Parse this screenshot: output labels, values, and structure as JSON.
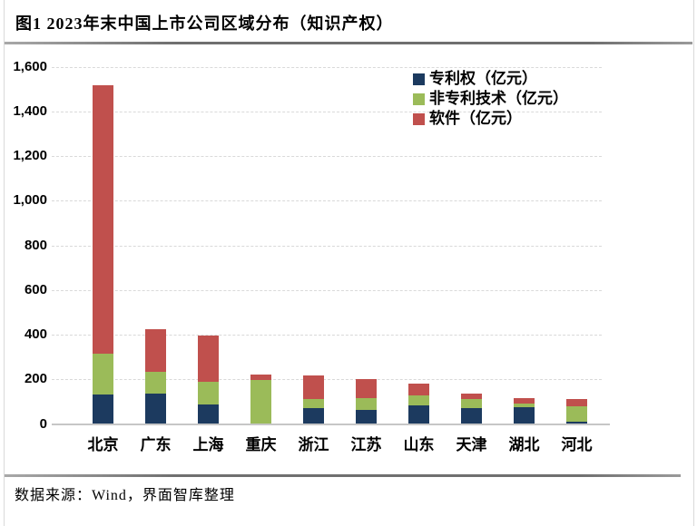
{
  "title": "图1 2023年末中国上市公司区域分布（知识产权）",
  "source": "数据来源：Wind，界面智库整理",
  "colors": {
    "patent_blue": "#1C3A5F",
    "nonpatent_green": "#9BBB59",
    "software_red": "#C0504D",
    "gridline": "#d9d9d9",
    "axis": "#c6c6c6",
    "rule_gray": "#7f7f7f"
  },
  "chart_data": {
    "type": "bar",
    "stacked": true,
    "title": "图1 2023年末中国上市公司区域分布（知识产权）",
    "xlabel": "",
    "ylabel": "",
    "categories": [
      "北京",
      "广东",
      "上海",
      "重庆",
      "浙江",
      "江苏",
      "山东",
      "天津",
      "湖北",
      "河北"
    ],
    "series": [
      {
        "name": "专利权（亿元）",
        "color": "#1C3A5F",
        "values": [
          132,
          137,
          89,
          0,
          70,
          64,
          85,
          72,
          74,
          9
        ]
      },
      {
        "name": "非专利技术（亿元）",
        "color": "#9BBB59",
        "values": [
          183,
          95,
          98,
          197,
          43,
          50,
          43,
          40,
          17,
          69
        ]
      },
      {
        "name": "软件（亿元）",
        "color": "#C0504D",
        "values": [
          1202,
          192,
          207,
          25,
          103,
          88,
          52,
          24,
          25,
          34
        ]
      }
    ],
    "ylim": [
      0,
      1600
    ],
    "ytick_step": 200,
    "ytick_labels": [
      "0",
      "200",
      "400",
      "600",
      "800",
      "1,000",
      "1,200",
      "1,400",
      "1,600"
    ],
    "grid": "horizontal-dashed",
    "legend_position": "top-right"
  }
}
